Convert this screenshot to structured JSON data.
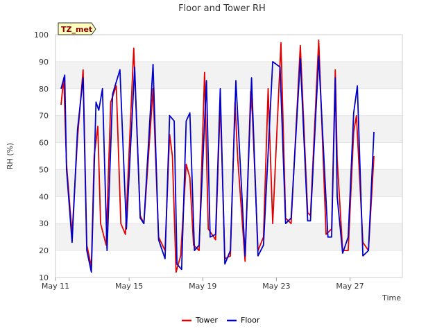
{
  "chart_data": {
    "type": "line",
    "title": "Floor and Tower RH",
    "xlabel": "Time",
    "ylabel": "RH (%)",
    "ylim": [
      10,
      100
    ],
    "xlim": [
      0,
      18
    ],
    "y_ticks": [
      10,
      20,
      30,
      40,
      50,
      60,
      70,
      80,
      90,
      100
    ],
    "x_ticks": [
      {
        "value": 0,
        "label": "May 11"
      },
      {
        "value": 4,
        "label": "May 15"
      },
      {
        "value": 8,
        "label": "May 19"
      },
      {
        "value": 12,
        "label": "May 23"
      },
      {
        "value": 16,
        "label": "May 27"
      }
    ],
    "grid": "alternating horizontal bands",
    "legend_position": "bottom-center",
    "badge": "TZ_met",
    "series": [
      {
        "name": "Tower",
        "color": "#e00000",
        "x": [
          0.3,
          0.45,
          0.6,
          0.9,
          1.2,
          1.5,
          1.7,
          1.95,
          2.1,
          2.3,
          2.45,
          2.75,
          3.0,
          3.3,
          3.55,
          3.8,
          4.25,
          4.6,
          4.8,
          5.3,
          5.6,
          5.95,
          6.2,
          6.35,
          6.55,
          6.8,
          7.1,
          7.3,
          7.5,
          7.8,
          8.1,
          8.3,
          8.7,
          8.95,
          9.2,
          9.5,
          9.75,
          9.9,
          10.3,
          10.6,
          10.7,
          11.0,
          11.3,
          11.55,
          11.8,
          12.25,
          12.5,
          12.8,
          13.3,
          13.7,
          13.85,
          14.3,
          14.7,
          15.0,
          15.2,
          15.3,
          15.6,
          15.9,
          16.2,
          16.35,
          16.7,
          17.0,
          17.3
        ],
        "values": [
          74,
          84,
          52,
          26,
          62,
          87,
          22,
          14,
          55,
          66,
          30,
          22,
          75,
          81,
          30,
          26,
          95,
          33,
          30,
          80,
          25,
          20,
          63,
          55,
          12,
          18,
          52,
          47,
          22,
          20,
          86,
          28,
          24,
          75,
          17,
          18,
          75,
          54,
          16,
          79,
          70,
          20,
          25,
          80,
          30,
          97,
          32,
          30,
          96,
          34,
          33,
          98,
          26,
          28,
          87,
          54,
          20,
          20,
          64,
          70,
          23,
          20,
          55
        ]
      },
      {
        "name": "Floor",
        "color": "#0000cc",
        "x": [
          0.3,
          0.5,
          0.6,
          0.9,
          1.2,
          1.5,
          1.7,
          1.95,
          2.2,
          2.35,
          2.55,
          2.8,
          3.1,
          3.5,
          3.85,
          4.3,
          4.6,
          4.8,
          5.3,
          5.6,
          5.95,
          6.2,
          6.45,
          6.6,
          6.85,
          7.1,
          7.3,
          7.55,
          7.8,
          8.2,
          8.4,
          8.7,
          8.95,
          9.2,
          9.5,
          9.8,
          10.3,
          10.65,
          11.0,
          11.3,
          11.8,
          12.2,
          12.5,
          12.8,
          13.3,
          13.7,
          13.85,
          14.3,
          14.8,
          15.0,
          15.2,
          15.3,
          15.6,
          15.9,
          16.2,
          16.4,
          16.7,
          17.0,
          17.3
        ],
        "values": [
          80,
          85,
          50,
          23,
          65,
          84,
          20,
          12,
          75,
          72,
          80,
          20,
          78,
          87,
          28,
          88,
          32,
          30,
          89,
          24,
          17,
          70,
          68,
          15,
          13,
          68,
          71,
          20,
          22,
          83,
          25,
          26,
          80,
          15,
          20,
          83,
          18,
          84,
          18,
          22,
          90,
          88,
          30,
          32,
          91,
          31,
          31,
          92,
          25,
          25,
          84,
          40,
          19,
          25,
          71,
          81,
          18,
          20,
          64
        ]
      }
    ]
  }
}
